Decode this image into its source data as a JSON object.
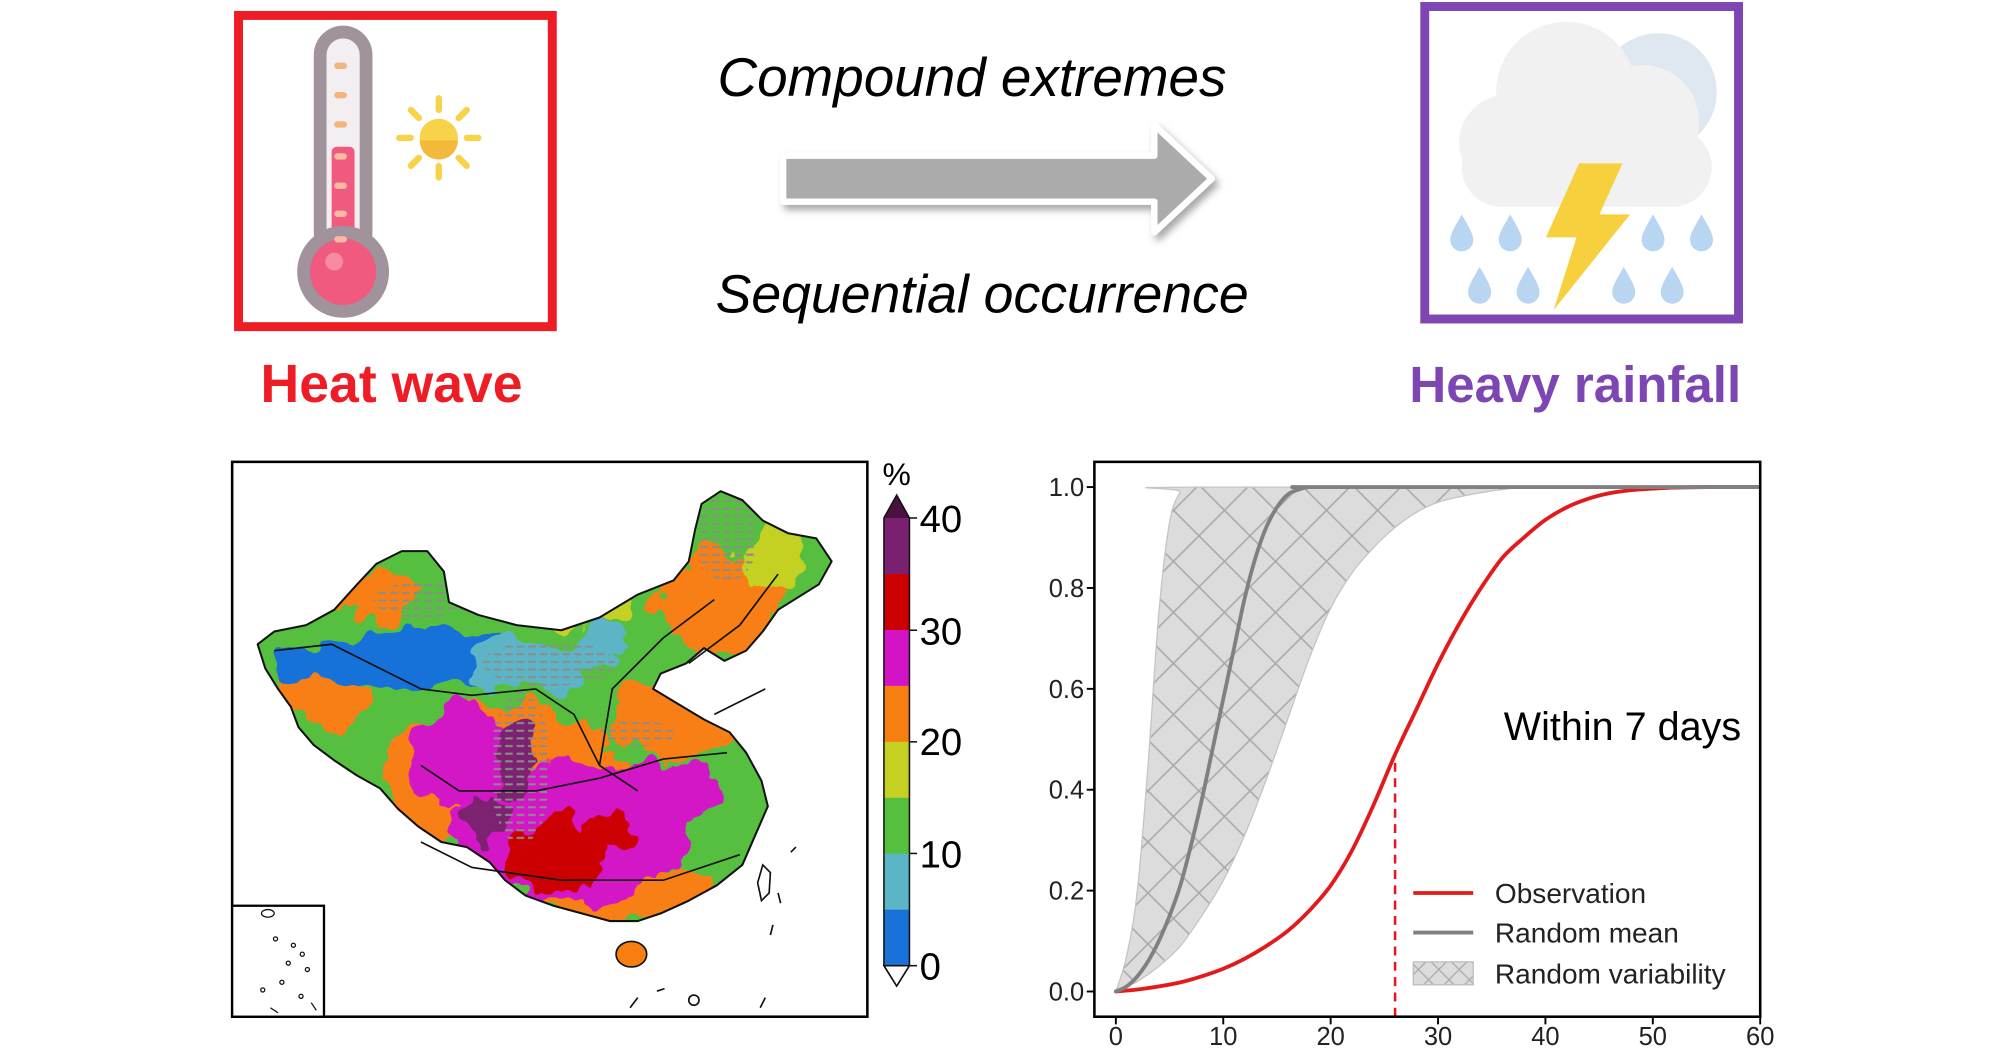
{
  "heat_wave": {
    "label": "Heat wave",
    "color": "#ee1c25"
  },
  "heavy_rainfall": {
    "label": "Heavy rainfall",
    "color": "#7d46b3"
  },
  "arrow": {
    "top_label": "Compound extremes",
    "bottom_label": "Sequential occurrence"
  },
  "icons": {
    "heat_panel": [
      "thermometer-icon",
      "sun-icon"
    ],
    "rain_panel": [
      "cloud-icon",
      "lightning-icon",
      "raindrop-icon"
    ],
    "center": [
      "right-arrow-icon"
    ]
  },
  "map": {
    "colorbar": {
      "unit": "%",
      "ticks": [
        "40",
        "30",
        "20",
        "10",
        "0"
      ],
      "colors": [
        "#7b2070",
        "#cc0000",
        "#d313c6",
        "#f77f12",
        "#c4d022",
        "#56bf40",
        "#5bb5c6",
        "#1972d9"
      ],
      "over_color": "#4a1040",
      "under_color": "#ffffff"
    }
  },
  "chart_data": {
    "type": "line",
    "annotation": "Within 7 days",
    "xlim": [
      -2,
      60
    ],
    "ylim": [
      -0.05,
      1.05
    ],
    "x_ticks": [
      "0",
      "10",
      "20",
      "30",
      "40",
      "50",
      "60"
    ],
    "y_ticks": [
      "0.0",
      "0.2",
      "0.4",
      "0.6",
      "0.8",
      "1.0"
    ],
    "grid": false,
    "legend": "lower-right",
    "series": [
      {
        "name": "Observation",
        "color": "#e31a1c",
        "x": [
          0,
          2,
          4,
          6,
          8,
          10,
          12,
          14,
          16,
          18,
          20,
          22,
          24,
          26,
          28,
          30,
          32,
          34,
          36,
          38,
          40,
          42,
          44,
          46,
          48,
          50,
          52,
          55,
          60
        ],
        "y": [
          0,
          0.004,
          0.01,
          0.018,
          0.03,
          0.045,
          0.065,
          0.09,
          0.12,
          0.16,
          0.21,
          0.28,
          0.37,
          0.47,
          0.56,
          0.65,
          0.73,
          0.8,
          0.86,
          0.9,
          0.935,
          0.96,
          0.977,
          0.988,
          0.994,
          0.997,
          0.999,
          1.0,
          1.0
        ]
      },
      {
        "name": "Random mean",
        "color": "#808080",
        "x": [
          0,
          1,
          2,
          3,
          4,
          5,
          6,
          7,
          8,
          9,
          10,
          11,
          12,
          13,
          14,
          15,
          16,
          17,
          18,
          20,
          60
        ],
        "y": [
          0,
          0.01,
          0.03,
          0.06,
          0.1,
          0.15,
          0.21,
          0.29,
          0.38,
          0.48,
          0.58,
          0.68,
          0.78,
          0.86,
          0.92,
          0.96,
          0.985,
          0.995,
          1.0,
          1.0,
          1.0
        ]
      }
    ],
    "band": {
      "name": "Random variability",
      "upper_x": [
        0,
        1,
        2,
        3,
        4,
        5,
        6,
        7,
        60
      ],
      "upper_y": [
        0,
        0.07,
        0.2,
        0.45,
        0.75,
        0.93,
        0.99,
        1.0,
        1.0
      ],
      "lower_x": [
        0,
        2,
        4,
        6,
        8,
        10,
        12,
        14,
        16,
        18,
        20,
        22,
        24,
        26,
        28,
        30,
        33,
        36,
        40,
        60
      ],
      "lower_y": [
        0,
        0.02,
        0.05,
        0.09,
        0.15,
        0.22,
        0.31,
        0.42,
        0.54,
        0.66,
        0.76,
        0.83,
        0.88,
        0.92,
        0.95,
        0.97,
        0.985,
        0.995,
        1.0,
        1.0
      ]
    },
    "marker": {
      "x": 26,
      "y": 0.47
    }
  }
}
